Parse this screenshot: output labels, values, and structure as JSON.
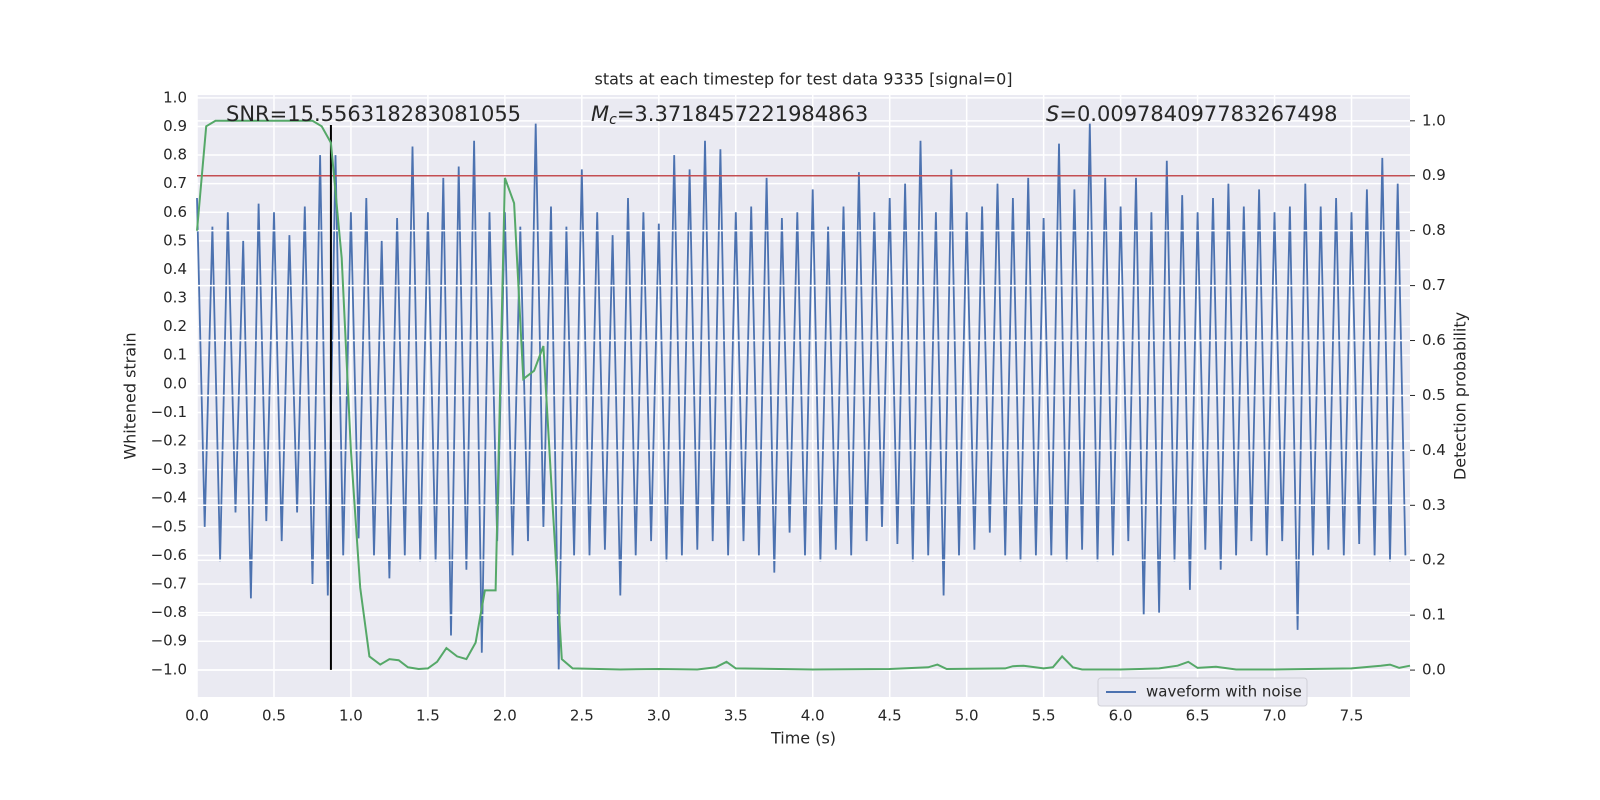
{
  "chart_data": {
    "type": "line",
    "title": "stats at each timestep for test data 9335 [signal=0]",
    "xlabel": "Time (s)",
    "ylabel": "Whitened strain",
    "y2label": "Detection probability",
    "annotations": {
      "snr": "SNR=15.556318283081055",
      "mc_symbol": "M",
      "mc_sub": "c",
      "mc_value": "=3.3718457221984863",
      "s_symbol": "S",
      "s_value": "=0.009784097783267498"
    },
    "xlim": [
      0,
      7.88
    ],
    "ylim": [
      -1.095,
      1.01
    ],
    "y2lim": [
      -0.049,
      1.047
    ],
    "xticks": [
      {
        "value": 0,
        "label": "0.0"
      },
      {
        "value": 0.5,
        "label": "0.5"
      },
      {
        "value": 1,
        "label": "1.0"
      },
      {
        "value": 1.5,
        "label": "1.5"
      },
      {
        "value": 2,
        "label": "2.0"
      },
      {
        "value": 2.5,
        "label": "2.5"
      },
      {
        "value": 3,
        "label": "3.0"
      },
      {
        "value": 3.5,
        "label": "3.5"
      },
      {
        "value": 4,
        "label": "4.0"
      },
      {
        "value": 4.5,
        "label": "4.5"
      },
      {
        "value": 5,
        "label": "5.0"
      },
      {
        "value": 5.5,
        "label": "5.5"
      },
      {
        "value": 6,
        "label": "6.0"
      },
      {
        "value": 6.5,
        "label": "6.5"
      },
      {
        "value": 7,
        "label": "7.0"
      },
      {
        "value": 7.5,
        "label": "7.5"
      }
    ],
    "yticks": [
      {
        "value": -1,
        "label": "−1.0"
      },
      {
        "value": -0.9,
        "label": "−0.9"
      },
      {
        "value": -0.8,
        "label": "−0.8"
      },
      {
        "value": -0.7,
        "label": "−0.7"
      },
      {
        "value": -0.6,
        "label": "−0.6"
      },
      {
        "value": -0.5,
        "label": "−0.5"
      },
      {
        "value": -0.4,
        "label": "−0.4"
      },
      {
        "value": -0.3,
        "label": "−0.3"
      },
      {
        "value": -0.2,
        "label": "−0.2"
      },
      {
        "value": -0.1,
        "label": "−0.1"
      },
      {
        "value": 0,
        "label": "0.0"
      },
      {
        "value": 0.1,
        "label": "0.1"
      },
      {
        "value": 0.2,
        "label": "0.2"
      },
      {
        "value": 0.3,
        "label": "0.3"
      },
      {
        "value": 0.4,
        "label": "0.4"
      },
      {
        "value": 0.5,
        "label": "0.5"
      },
      {
        "value": 0.6,
        "label": "0.6"
      },
      {
        "value": 0.7,
        "label": "0.7"
      },
      {
        "value": 0.8,
        "label": "0.8"
      },
      {
        "value": 0.9,
        "label": "0.9"
      },
      {
        "value": 1,
        "label": "1.0"
      }
    ],
    "y2ticks": [
      {
        "value": 0,
        "label": "0.0"
      },
      {
        "value": 0.1,
        "label": "0.1"
      },
      {
        "value": 0.2,
        "label": "0.2"
      },
      {
        "value": 0.3,
        "label": "0.3"
      },
      {
        "value": 0.4,
        "label": "0.4"
      },
      {
        "value": 0.5,
        "label": "0.5"
      },
      {
        "value": 0.6,
        "label": "0.6"
      },
      {
        "value": 0.7,
        "label": "0.7"
      },
      {
        "value": 0.8,
        "label": "0.8"
      },
      {
        "value": 0.9,
        "label": "0.9"
      },
      {
        "value": 1,
        "label": "1.0"
      }
    ],
    "grid": true,
    "legend": "lower right",
    "threshold": {
      "value": 0.9,
      "color": "#c44e52",
      "axis": "y2"
    },
    "marker": {
      "x": 0.87,
      "ymin": -1.0,
      "ymax": 0.905,
      "color": "#000000"
    },
    "series": [
      {
        "name": "waveform with noise",
        "color": "#4c72b0",
        "x": [
          0,
          0.05,
          0.1,
          0.15,
          0.2,
          0.25,
          0.3,
          0.35,
          0.4,
          0.45,
          0.5,
          0.55,
          0.6,
          0.65,
          0.7,
          0.75,
          0.8,
          0.85,
          0.9,
          0.95,
          1,
          1.05,
          1.1,
          1.15,
          1.2,
          1.25,
          1.3,
          1.35,
          1.4,
          1.45,
          1.5,
          1.55,
          1.6,
          1.65,
          1.7,
          1.75,
          1.8,
          1.85,
          1.9,
          1.95,
          2,
          2.05,
          2.1,
          2.15,
          2.2,
          2.25,
          2.3,
          2.35,
          2.4,
          2.45,
          2.5,
          2.55,
          2.6,
          2.65,
          2.7,
          2.75,
          2.8,
          2.85,
          2.9,
          2.95,
          3,
          3.05,
          3.1,
          3.15,
          3.2,
          3.25,
          3.3,
          3.35,
          3.4,
          3.45,
          3.5,
          3.55,
          3.6,
          3.65,
          3.7,
          3.75,
          3.8,
          3.85,
          3.9,
          3.95,
          4,
          4.05,
          4.1,
          4.15,
          4.2,
          4.25,
          4.3,
          4.35,
          4.4,
          4.45,
          4.5,
          4.55,
          4.6,
          4.65,
          4.7,
          4.75,
          4.8,
          4.85,
          4.9,
          4.95,
          5,
          5.05,
          5.1,
          5.15,
          5.2,
          5.25,
          5.3,
          5.35,
          5.4,
          5.45,
          5.5,
          5.55,
          5.6,
          5.65,
          5.7,
          5.75,
          5.8,
          5.85,
          5.9,
          5.95,
          6,
          6.05,
          6.1,
          6.15,
          6.2,
          6.25,
          6.3,
          6.35,
          6.4,
          6.45,
          6.5,
          6.55,
          6.6,
          6.65,
          6.7,
          6.75,
          6.8,
          6.85,
          6.9,
          6.95,
          7,
          7.05,
          7.1,
          7.15,
          7.2,
          7.25,
          7.3,
          7.35,
          7.4,
          7.45,
          7.5,
          7.55,
          7.6,
          7.65,
          7.7,
          7.75,
          7.8,
          7.85
        ],
        "values": [
          0.65,
          -0.5,
          0.55,
          -0.62,
          0.6,
          -0.45,
          0.5,
          -0.75,
          0.63,
          -0.48,
          0.6,
          -0.55,
          0.52,
          -0.45,
          0.62,
          -0.7,
          0.8,
          -0.74,
          0.8,
          -0.6,
          0.6,
          -0.54,
          0.65,
          -0.6,
          0.5,
          -0.68,
          0.58,
          -0.6,
          0.83,
          -0.62,
          0.6,
          -0.62,
          0.72,
          -0.88,
          0.76,
          -0.65,
          0.85,
          -0.94,
          0.6,
          -0.55,
          0.6,
          -0.6,
          0.55,
          -0.55,
          0.91,
          -0.5,
          0.62,
          -1.0,
          0.55,
          -0.6,
          0.75,
          -0.6,
          0.6,
          -0.58,
          0.52,
          -0.74,
          0.65,
          -0.6,
          0.6,
          -0.55,
          0.56,
          -0.62,
          0.8,
          -0.6,
          0.75,
          -0.58,
          0.85,
          -0.55,
          0.82,
          -0.6,
          0.6,
          -0.55,
          0.62,
          -0.6,
          0.72,
          -0.66,
          0.58,
          -0.52,
          0.6,
          -0.6,
          0.68,
          -0.62,
          0.55,
          -0.58,
          0.62,
          -0.6,
          0.74,
          -0.55,
          0.6,
          -0.5,
          0.65,
          -0.56,
          0.7,
          -0.62,
          0.85,
          -0.6,
          0.6,
          -0.74,
          0.75,
          -0.6,
          0.6,
          -0.58,
          0.62,
          -0.52,
          0.7,
          -0.6,
          0.65,
          -0.62,
          0.72,
          -0.6,
          0.58,
          -0.6,
          0.84,
          -0.62,
          0.68,
          -0.58,
          0.91,
          -0.62,
          0.72,
          -0.6,
          0.62,
          -0.55,
          0.72,
          -0.81,
          0.6,
          -0.8,
          0.78,
          -0.62,
          0.66,
          -0.72,
          0.6,
          -0.58,
          0.65,
          -0.65,
          0.7,
          -0.6,
          0.62,
          -0.55,
          0.68,
          -0.6,
          0.6,
          -0.55,
          0.62,
          -0.86,
          0.7,
          -0.6,
          0.62,
          -0.58,
          0.65,
          -0.6,
          0.6,
          -0.56,
          0.68,
          -0.6,
          0.79,
          -0.62,
          0.7,
          -0.6
        ]
      },
      {
        "name": "Detection probability",
        "color": "#55a868",
        "axis": "y2",
        "x": [
          0,
          0.06,
          0.12,
          0.25,
          0.5,
          0.75,
          0.81,
          0.87,
          0.94,
          1.0,
          1.06,
          1.12,
          1.19,
          1.25,
          1.31,
          1.37,
          1.44,
          1.5,
          1.56,
          1.62,
          1.69,
          1.75,
          1.81,
          1.87,
          1.94,
          2.0,
          2.06,
          2.12,
          2.19,
          2.25,
          2.31,
          2.37,
          2.44,
          2.75,
          3.0,
          3.25,
          3.37,
          3.44,
          3.5,
          4.0,
          4.5,
          4.75,
          4.81,
          4.87,
          5.25,
          5.3,
          5.37,
          5.5,
          5.56,
          5.62,
          5.69,
          5.75,
          6.0,
          6.25,
          6.37,
          6.44,
          6.5,
          6.62,
          6.75,
          7.0,
          7.5,
          7.69,
          7.75,
          7.81,
          7.88
        ],
        "values": [
          0.8,
          0.99,
          1.0,
          1.0,
          1.0,
          1.0,
          0.99,
          0.96,
          0.75,
          0.4,
          0.15,
          0.025,
          0.01,
          0.02,
          0.018,
          0.005,
          0.002,
          0.003,
          0.015,
          0.04,
          0.025,
          0.02,
          0.05,
          0.145,
          0.145,
          0.896,
          0.85,
          0.53,
          0.545,
          0.59,
          0.3,
          0.02,
          0.003,
          0.001,
          0.002,
          0.001,
          0.005,
          0.015,
          0.003,
          0.001,
          0.002,
          0.005,
          0.01,
          0.002,
          0.003,
          0.007,
          0.008,
          0.003,
          0.005,
          0.025,
          0.005,
          0.001,
          0.001,
          0.003,
          0.008,
          0.015,
          0.004,
          0.006,
          0.001,
          0.001,
          0.003,
          0.008,
          0.01,
          0.004,
          0.008
        ]
      }
    ]
  }
}
